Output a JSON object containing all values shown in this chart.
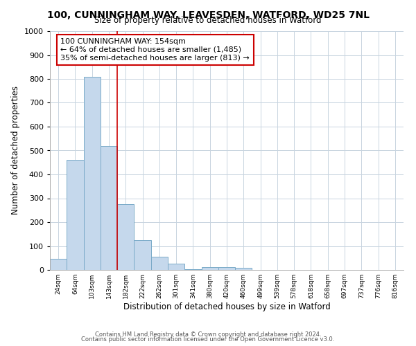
{
  "title": "100, CUNNINGHAM WAY, LEAVESDEN, WATFORD, WD25 7NL",
  "subtitle": "Size of property relative to detached houses in Watford",
  "xlabel": "Distribution of detached houses by size in Watford",
  "ylabel": "Number of detached properties",
  "categories": [
    "24sqm",
    "64sqm",
    "103sqm",
    "143sqm",
    "182sqm",
    "222sqm",
    "262sqm",
    "301sqm",
    "341sqm",
    "380sqm",
    "420sqm",
    "460sqm",
    "499sqm",
    "539sqm",
    "578sqm",
    "618sqm",
    "658sqm",
    "697sqm",
    "737sqm",
    "776sqm",
    "816sqm"
  ],
  "values": [
    45,
    460,
    810,
    520,
    275,
    125,
    55,
    25,
    3,
    12,
    12,
    8,
    0,
    0,
    0,
    0,
    0,
    0,
    0,
    0,
    0
  ],
  "bar_color": "#c5d8ec",
  "bar_edge_color": "#7aaac8",
  "vline_x": 3.5,
  "vline_color": "#cc0000",
  "annotation_text": "100 CUNNINGHAM WAY: 154sqm\n← 64% of detached houses are smaller (1,485)\n35% of semi-detached houses are larger (813) →",
  "annotation_box_color": "#ffffff",
  "annotation_box_edge": "#cc0000",
  "ylim": [
    0,
    1000
  ],
  "yticks": [
    0,
    100,
    200,
    300,
    400,
    500,
    600,
    700,
    800,
    900,
    1000
  ],
  "footer1": "Contains HM Land Registry data © Crown copyright and database right 2024.",
  "footer2": "Contains public sector information licensed under the Open Government Licence v3.0.",
  "bg_color": "#ffffff",
  "plot_bg_color": "#ffffff"
}
